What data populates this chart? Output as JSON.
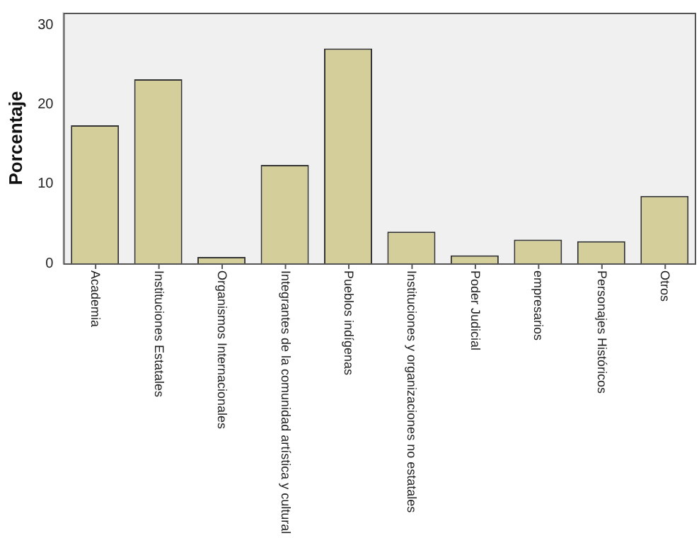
{
  "chart_data": {
    "type": "bar",
    "ylabel": "Porcentaje",
    "categories": [
      "Academia",
      "Instituciones Estatales",
      "Organismos Internacionales",
      "Integrantes de la comunidad artística y cultural",
      "Pueblos indígenas",
      "Instituciones y organizaciones no estatales",
      "Poder Judicial",
      "empresarios",
      "Personajes Históricos",
      "Otros"
    ],
    "values": [
      17.4,
      23.2,
      0.8,
      12.4,
      27.1,
      4.0,
      1.0,
      3.0,
      2.8,
      8.5
    ],
    "color": "#d4cf9a",
    "ylim": [
      0,
      31.6
    ],
    "yticks": [
      0,
      10,
      20,
      30
    ],
    "grid": false,
    "legend": false
  }
}
